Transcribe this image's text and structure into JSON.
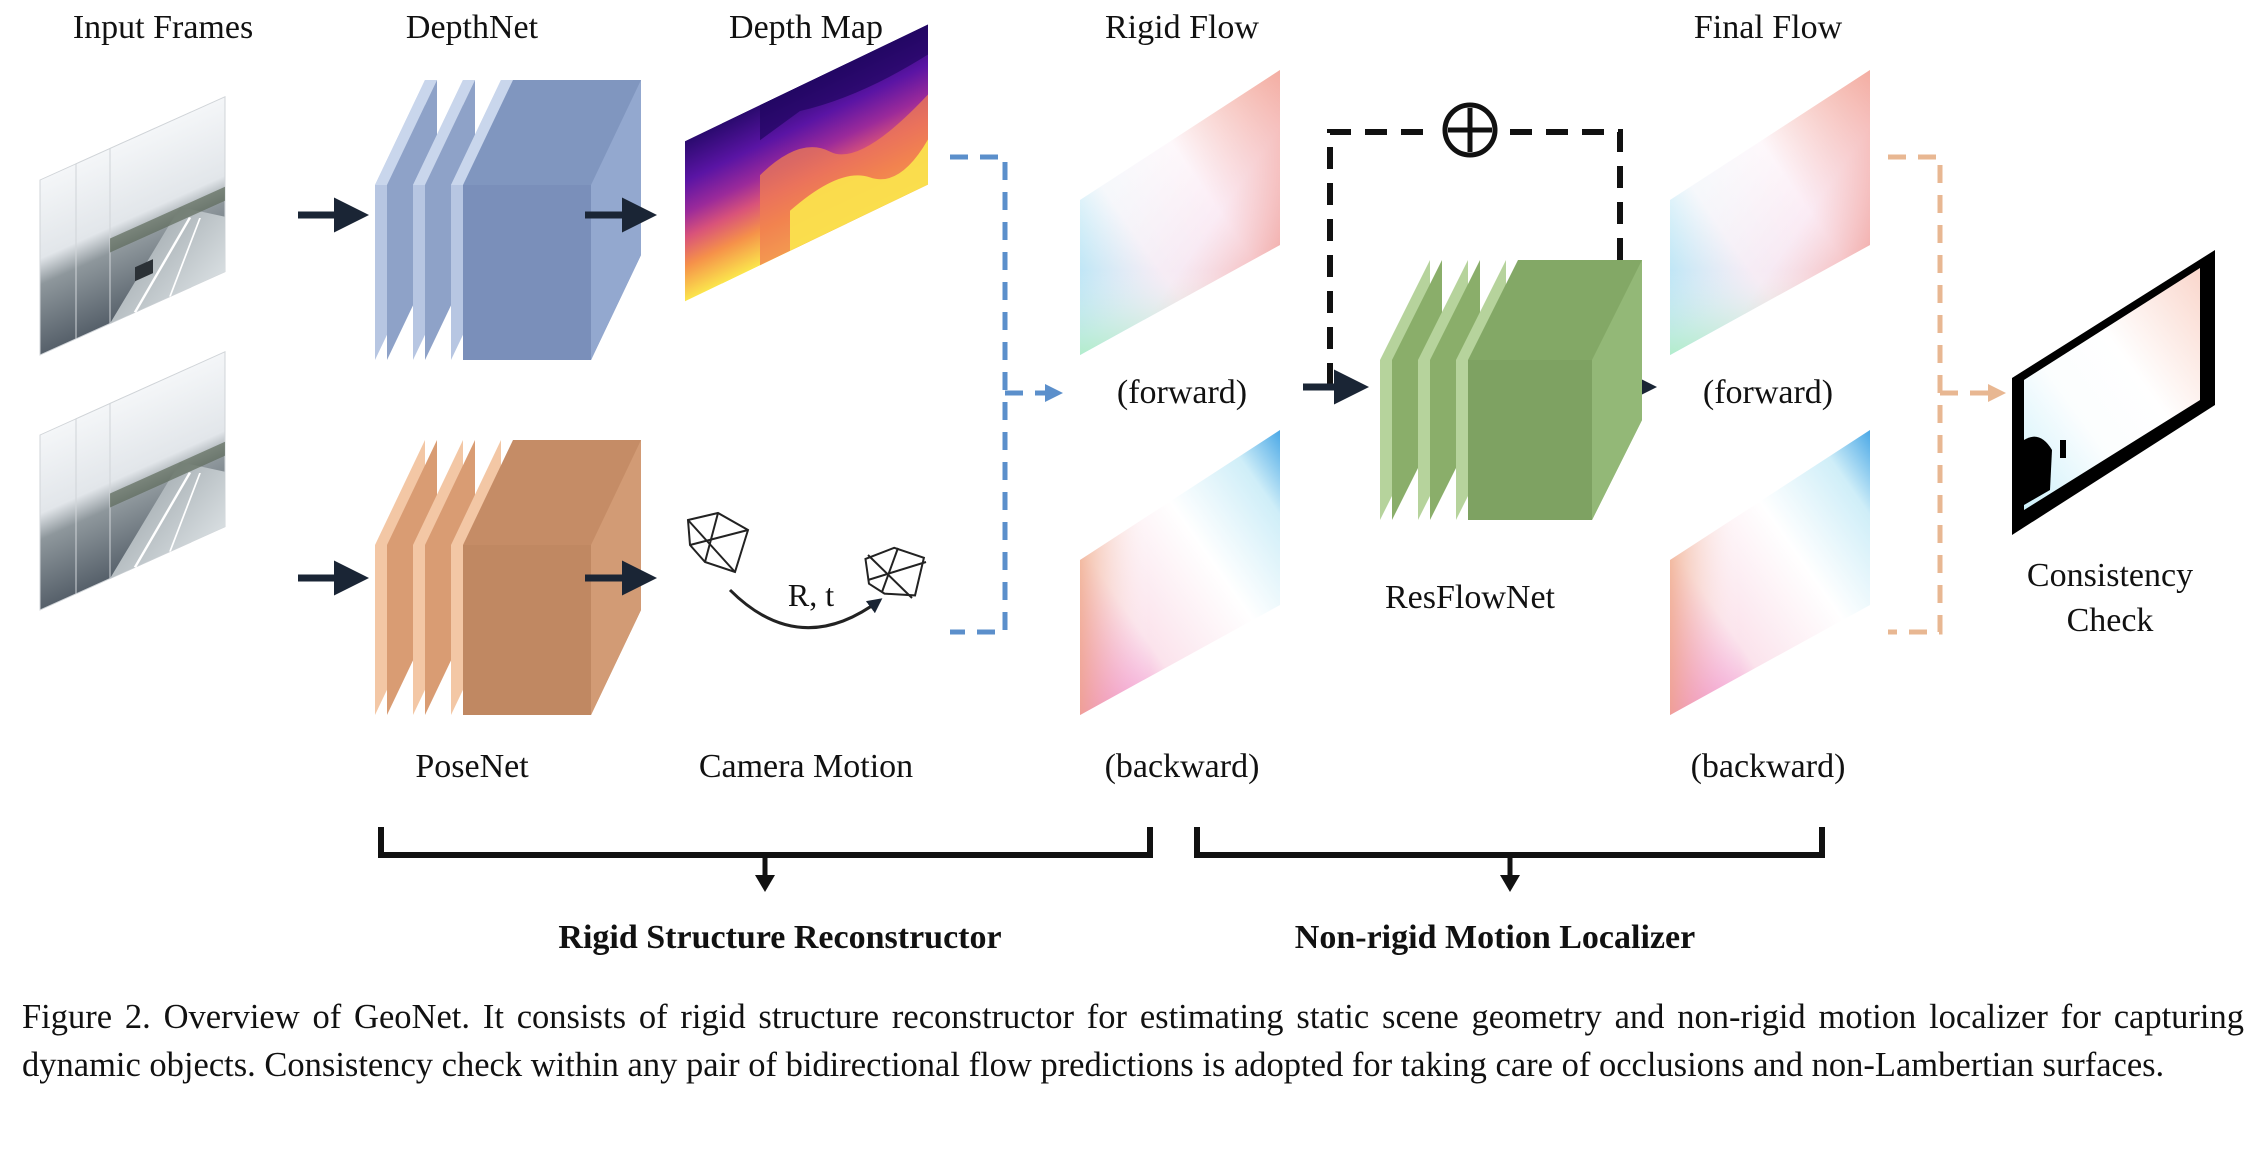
{
  "labels": {
    "input_frames": "Input Frames",
    "depthnet": "DepthNet",
    "depth_map": "Depth Map",
    "rigid_flow": "Rigid Flow",
    "final_flow": "Final Flow",
    "forward_rigid": "(forward)",
    "forward_final": "(forward)",
    "backward_rigid": "(backward)",
    "backward_final": "(backward)",
    "posenet": "PoseNet",
    "camera_motion": "Camera Motion",
    "rt": "R, t",
    "resflownet": "ResFlowNet",
    "consistency_1": "Consistency",
    "consistency_2": "Check",
    "rigid_structure": "Rigid Structure Reconstructor",
    "nonrigid_motion": "Non-rigid Motion Localizer"
  },
  "caption": {
    "figure_label": "Figure 2. Overview of GeoNet.",
    "text": "It consists of rigid structure reconstructor for estimating static scene geometry and non-rigid motion localizer for capturing dynamic objects. Consistency check within any pair of bidirectional flow predictions is adopted for taking care of occlusions and non-Lambertian surfaces."
  },
  "colors": {
    "depthnet": "#9fb3d6",
    "posenet": "#eab58e",
    "resflownet": "#9cbc7e",
    "blue_dash": "#5b8fcb",
    "orange_dash": "#e8b792",
    "arrow": "#1a2535"
  },
  "icons": {
    "plus": "circled-plus-icon",
    "camera": "camera-frustum-icon"
  }
}
